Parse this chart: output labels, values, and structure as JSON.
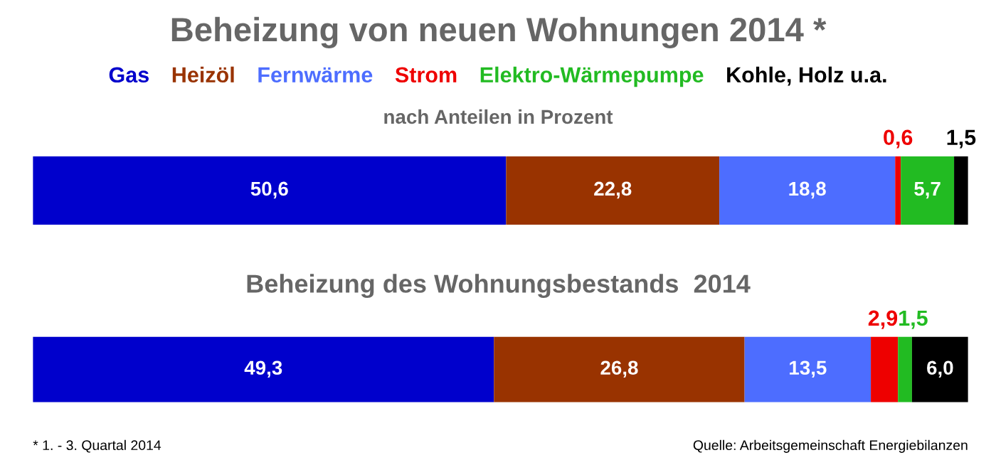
{
  "chart_data": [
    {
      "type": "bar",
      "orientation": "horizontal",
      "stacked": true,
      "title": "Beheizung von neuen Wohnungen 2014 *",
      "subtitle": "nach Anteilen in Prozent",
      "categories": [
        null
      ],
      "legend": "top",
      "series": [
        {
          "name": "Gas",
          "color": "#0000cc",
          "values": [
            50.6
          ],
          "value_labels": [
            "50,6"
          ]
        },
        {
          "name": "Heizöl",
          "color": "#993300",
          "values": [
            22.8
          ],
          "value_labels": [
            "22,8"
          ]
        },
        {
          "name": "Fernwärme",
          "color": "#4d6dff",
          "values": [
            18.8
          ],
          "value_labels": [
            "18,8"
          ]
        },
        {
          "name": "Strom",
          "color": "#ee0000",
          "values": [
            0.6
          ],
          "value_labels": [
            "0,6"
          ]
        },
        {
          "name": "Elektro-Wärmepumpe",
          "color": "#22bb22",
          "values": [
            5.7
          ],
          "value_labels": [
            "5,7"
          ]
        },
        {
          "name": "Kohle, Holz u.a.",
          "color": "#000000",
          "values": [
            1.5
          ],
          "value_labels": [
            "1,5"
          ]
        }
      ]
    },
    {
      "type": "bar",
      "orientation": "horizontal",
      "stacked": true,
      "title": "Beheizung des Wohnungsbestands  2014",
      "categories": [
        null
      ],
      "annotations": [
        "* 1. - 3. Quartal 2014",
        "Quelle: Arbeitsgemeinschaft Energiebilanzen"
      ],
      "series": [
        {
          "color": "#0000cc",
          "values": [
            49.3
          ],
          "value_labels": [
            "49,3"
          ]
        },
        {
          "color": "#993300",
          "values": [
            26.8
          ],
          "value_labels": [
            "26,8"
          ]
        },
        {
          "color": "#4d6dff",
          "values": [
            13.5
          ],
          "value_labels": [
            "13,5"
          ]
        },
        {
          "color": "#ee0000",
          "values": [
            2.9
          ],
          "value_labels": [
            "2,9"
          ]
        },
        {
          "color": "#22bb22",
          "values": [
            1.5
          ],
          "value_labels": [
            "1,5"
          ]
        },
        {
          "color": "#000000",
          "values": [
            6.0
          ],
          "value_labels": [
            "6,0"
          ]
        }
      ]
    }
  ]
}
